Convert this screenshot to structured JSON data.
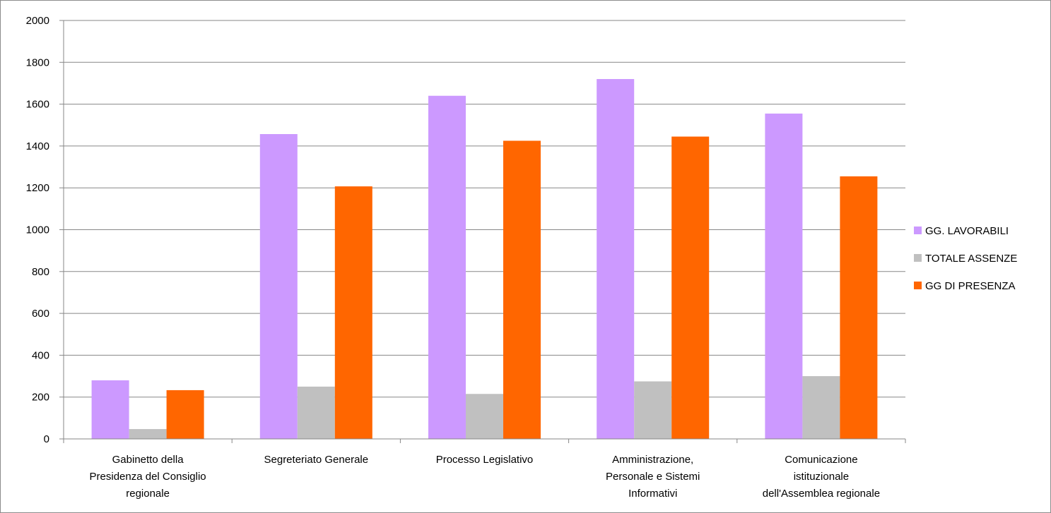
{
  "chart_data": {
    "type": "bar",
    "title": "",
    "xlabel": "",
    "ylabel": "",
    "ylim": [
      0,
      2000
    ],
    "yticks": [
      0,
      200,
      400,
      600,
      800,
      1000,
      1200,
      1400,
      1600,
      1800,
      2000
    ],
    "grid": true,
    "legend_position": "right",
    "categories": [
      [
        "Gabinetto della",
        "Presidenza del Consiglio",
        "regionale"
      ],
      [
        "Segreteriato Generale"
      ],
      [
        "Processo Legislativo"
      ],
      [
        "Amministrazione,",
        "Personale e Sistemi",
        "Informativi"
      ],
      [
        "Comunicazione",
        "istituzionale",
        "dell'Assemblea regionale"
      ]
    ],
    "series": [
      {
        "name": "GG. LAVORABILI",
        "color": "#cc99ff",
        "values": [
          280,
          1457,
          1640,
          1720,
          1555
        ]
      },
      {
        "name": "TOTALE ASSENZE",
        "color": "#c0c0c0",
        "values": [
          47,
          250,
          215,
          275,
          300
        ]
      },
      {
        "name": "GG DI PRESENZA",
        "color": "#ff6600",
        "values": [
          233,
          1207,
          1425,
          1445,
          1255
        ]
      }
    ]
  }
}
